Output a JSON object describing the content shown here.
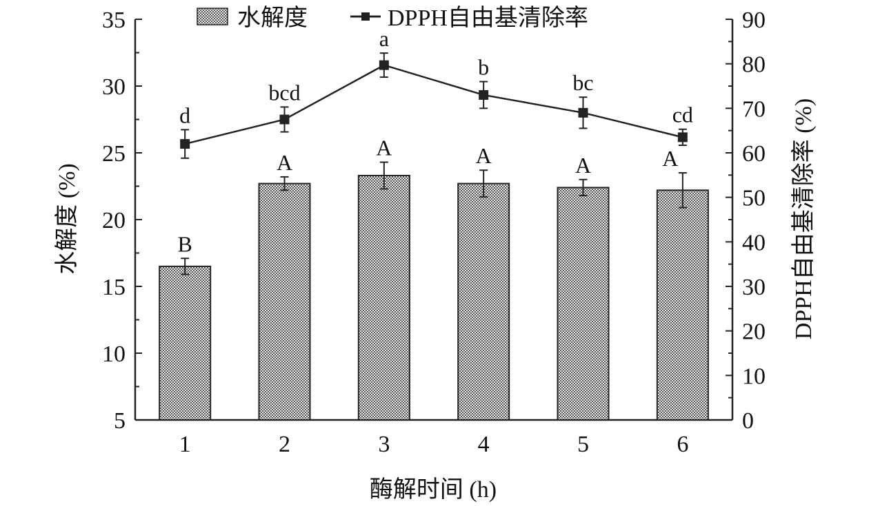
{
  "chart_data": {
    "type": "bar",
    "categories": [
      "1",
      "2",
      "3",
      "4",
      "5",
      "6"
    ],
    "xlabel": "酶解时间 (h)",
    "ylabel_left": "水解度 (%)",
    "ylabel_right": "DPPH自由基清除率 (%)",
    "ylim_left": [
      5,
      35
    ],
    "yticks_left": [
      "5",
      "10",
      "15",
      "20",
      "25",
      "30",
      "35"
    ],
    "ylim_right": [
      0,
      90
    ],
    "yticks_right": [
      "0",
      "10",
      "20",
      "30",
      "40",
      "50",
      "60",
      "70",
      "80",
      "90"
    ],
    "legend_position": "top",
    "series": [
      {
        "name": "水解度",
        "type": "bar",
        "axis": "left",
        "values": [
          16.5,
          22.7,
          23.3,
          22.7,
          22.4,
          22.2
        ],
        "errors": [
          0.6,
          0.5,
          1.0,
          1.0,
          0.6,
          1.3
        ],
        "labels": [
          "B",
          "A",
          "A",
          "A",
          "A",
          "A"
        ]
      },
      {
        "name": "DPPH自由基清除率",
        "type": "line",
        "axis": "right",
        "values": [
          62.0,
          67.5,
          79.7,
          73.0,
          69.0,
          63.5
        ],
        "errors": [
          3.2,
          2.8,
          2.7,
          3.0,
          3.5,
          1.8
        ],
        "labels": [
          "d",
          "bcd",
          "a",
          "b",
          "bc",
          "cd"
        ]
      }
    ],
    "colors": {
      "bar_fill": "#8c8c8c",
      "axis": "#222222",
      "line": "#222222"
    }
  }
}
